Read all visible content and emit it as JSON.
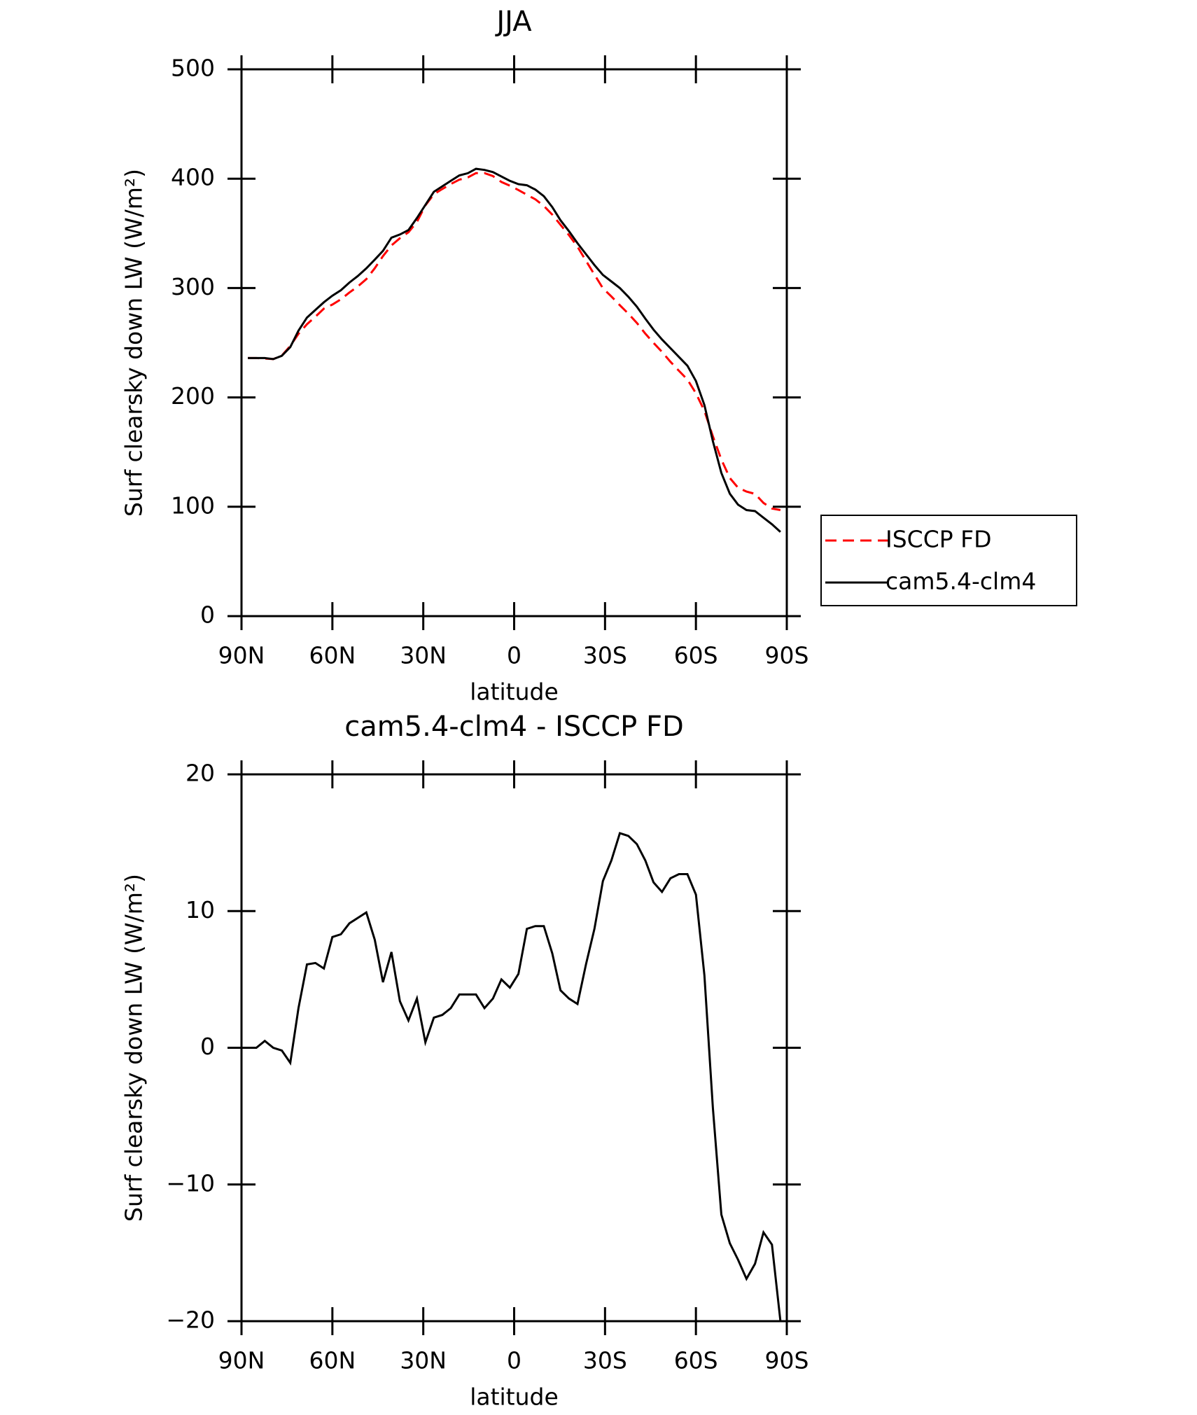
{
  "chart_data": [
    {
      "type": "line",
      "title": "JJA",
      "xlabel": "latitude",
      "ylabel": "Surf clearsky down LW (W/m²)",
      "x": [
        87.9,
        85.1,
        82.3,
        79.5,
        76.7,
        73.9,
        71.2,
        68.4,
        65.6,
        62.8,
        60.0,
        57.2,
        54.4,
        51.6,
        48.8,
        46.0,
        43.3,
        40.5,
        37.7,
        34.9,
        32.1,
        29.3,
        26.5,
        23.7,
        20.9,
        18.1,
        15.3,
        12.6,
        9.8,
        7.0,
        4.2,
        1.4,
        -1.4,
        -4.2,
        -7.0,
        -9.8,
        -12.6,
        -15.3,
        -18.1,
        -20.9,
        -23.7,
        -26.5,
        -29.3,
        -32.1,
        -34.9,
        -37.7,
        -40.5,
        -43.3,
        -46.0,
        -48.8,
        -51.6,
        -54.4,
        -57.2,
        -60.0,
        -62.8,
        -65.6,
        -68.4,
        -71.2,
        -73.9,
        -76.7,
        -79.5,
        -82.3,
        -85.1,
        -87.9
      ],
      "series": [
        {
          "name": "ISCCP FD",
          "color": "#ff0000",
          "dash": true,
          "values": [
            236,
            236,
            235.5,
            235,
            238.2,
            247.1,
            258.1,
            266.9,
            273.8,
            281.2,
            284.9,
            289.7,
            295.9,
            301.5,
            308.1,
            318.1,
            329.2,
            339,
            345.6,
            351,
            360.4,
            375.6,
            385.8,
            390.6,
            395.1,
            399.1,
            401.1,
            405.1,
            405.1,
            402.4,
            397,
            393.6,
            389.6,
            385.3,
            381.1,
            375.1,
            367.1,
            357.8,
            348.4,
            337.8,
            324.9,
            312.3,
            299.8,
            292.3,
            284.3,
            276.5,
            268.1,
            258.3,
            249.9,
            241.6,
            232.6,
            224.3,
            216.3,
            203.8,
            187.7,
            164.4,
            143.2,
            126.3,
            117.5,
            113.9,
            111.8,
            103.5,
            98.4,
            97
          ]
        },
        {
          "name": "cam5.4-clm4",
          "color": "#000000",
          "dash": false,
          "values": [
            236,
            236,
            236,
            235,
            238,
            246,
            261,
            273,
            280,
            287,
            293,
            298,
            305,
            311,
            318,
            326,
            334,
            346,
            349,
            353,
            364,
            376,
            388,
            393,
            398,
            403,
            405,
            409,
            408,
            406,
            402,
            398,
            395,
            394,
            390,
            384,
            374,
            362,
            352,
            341,
            331,
            321,
            312,
            306,
            300,
            292,
            283,
            272,
            262,
            253,
            245,
            237,
            229,
            215,
            193,
            160,
            131,
            112,
            102,
            97,
            96,
            90,
            84,
            77
          ]
        }
      ],
      "xlim": [
        90,
        -90
      ],
      "xticks": [
        {
          "value": 90,
          "label": "90N"
        },
        {
          "value": 60,
          "label": "60N"
        },
        {
          "value": 30,
          "label": "30N"
        },
        0,
        {
          "value": -30,
          "label": "30S"
        },
        {
          "value": -60,
          "label": "60S"
        },
        {
          "value": -90,
          "label": "90S"
        }
      ],
      "ylim": [
        0,
        500
      ],
      "yticks": [
        0,
        100,
        200,
        300,
        400,
        500
      ],
      "legend": "outside right"
    },
    {
      "type": "line",
      "title": "cam5.4-clm4 - ISCCP FD",
      "xlabel": "latitude",
      "ylabel": "Surf clearsky down LW (W/m²)",
      "x": [
        87.9,
        85.1,
        82.3,
        79.5,
        76.7,
        73.9,
        71.2,
        68.4,
        65.6,
        62.8,
        60.0,
        57.2,
        54.4,
        51.6,
        48.8,
        46.0,
        43.3,
        40.5,
        37.7,
        34.9,
        32.1,
        29.3,
        26.5,
        23.7,
        20.9,
        18.1,
        15.3,
        12.6,
        9.8,
        7.0,
        4.2,
        1.4,
        -1.4,
        -4.2,
        -7.0,
        -9.8,
        -12.6,
        -15.3,
        -18.1,
        -20.9,
        -23.7,
        -26.5,
        -29.3,
        -32.1,
        -34.9,
        -37.7,
        -40.5,
        -43.3,
        -46.0,
        -48.8,
        -51.6,
        -54.4,
        -57.2,
        -60.0,
        -62.8,
        -65.6,
        -68.4,
        -71.2,
        -73.9,
        -76.7,
        -79.5,
        -82.3,
        -85.1,
        -87.9
      ],
      "series": [
        {
          "color": "#000000",
          "values": [
            0,
            0,
            0.5,
            0,
            -0.2,
            -1.1,
            2.9,
            6.1,
            6.2,
            5.8,
            8.1,
            8.3,
            9.1,
            9.5,
            9.9,
            7.9,
            4.8,
            7.0,
            3.4,
            2.0,
            3.6,
            0.4,
            2.2,
            2.4,
            2.9,
            3.9,
            3.9,
            3.9,
            2.9,
            3.6,
            5.0,
            4.4,
            5.4,
            8.7,
            8.9,
            8.9,
            6.9,
            4.2,
            3.6,
            3.2,
            6.1,
            8.7,
            12.2,
            13.7,
            15.7,
            15.5,
            14.9,
            13.7,
            12.1,
            11.4,
            12.4,
            12.7,
            12.7,
            11.2,
            5.3,
            -4.4,
            -12.2,
            -14.3,
            -15.5,
            -16.9,
            -15.8,
            -13.5,
            -14.4,
            -20.0
          ]
        }
      ],
      "xlim": [
        90,
        -90
      ],
      "xticks": [
        {
          "value": 90,
          "label": "90N"
        },
        {
          "value": 60,
          "label": "60N"
        },
        {
          "value": 30,
          "label": "30N"
        },
        0,
        {
          "value": -30,
          "label": "30S"
        },
        {
          "value": -60,
          "label": "60S"
        },
        {
          "value": -90,
          "label": "90S"
        }
      ],
      "ylim": [
        -20,
        20
      ],
      "yticks": [
        {
          "value": -20,
          "label": "−20"
        },
        {
          "value": -10,
          "label": "−10"
        },
        0,
        10,
        20
      ]
    }
  ]
}
